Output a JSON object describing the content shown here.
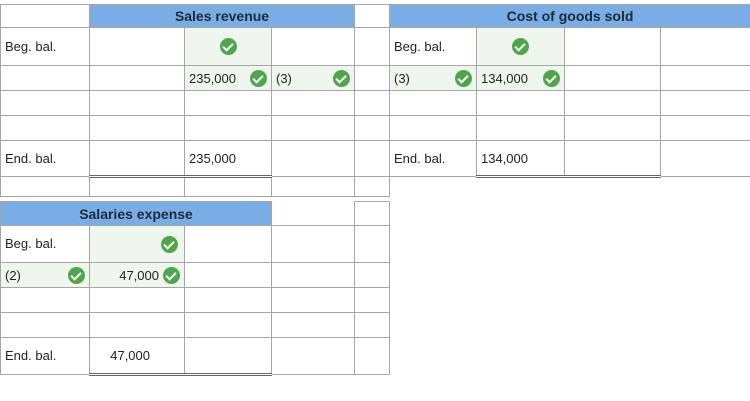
{
  "sales_revenue": {
    "title": "Sales revenue",
    "beg_label": "Beg. bal.",
    "row1_credit_value": "235,000",
    "row1_ref": "(3)",
    "end_label": "End. bal.",
    "end_value": "235,000"
  },
  "cogs": {
    "title": "Cost of goods sold",
    "beg_label": "Beg. bal.",
    "row1_ref": "(3)",
    "row1_debit_value": "134,000",
    "end_label": "End. bal.",
    "end_value": "134,000"
  },
  "salaries": {
    "title": "Salaries expense",
    "beg_label": "Beg. bal.",
    "row1_ref": "(2)",
    "row1_debit_value": "47,000",
    "end_label": "End. bal.",
    "end_value": "47,000"
  },
  "status_icon": "check-icon",
  "colors": {
    "header": "#79ade5",
    "check": "#4fa64c",
    "answer_bg": "#eef6ee"
  }
}
